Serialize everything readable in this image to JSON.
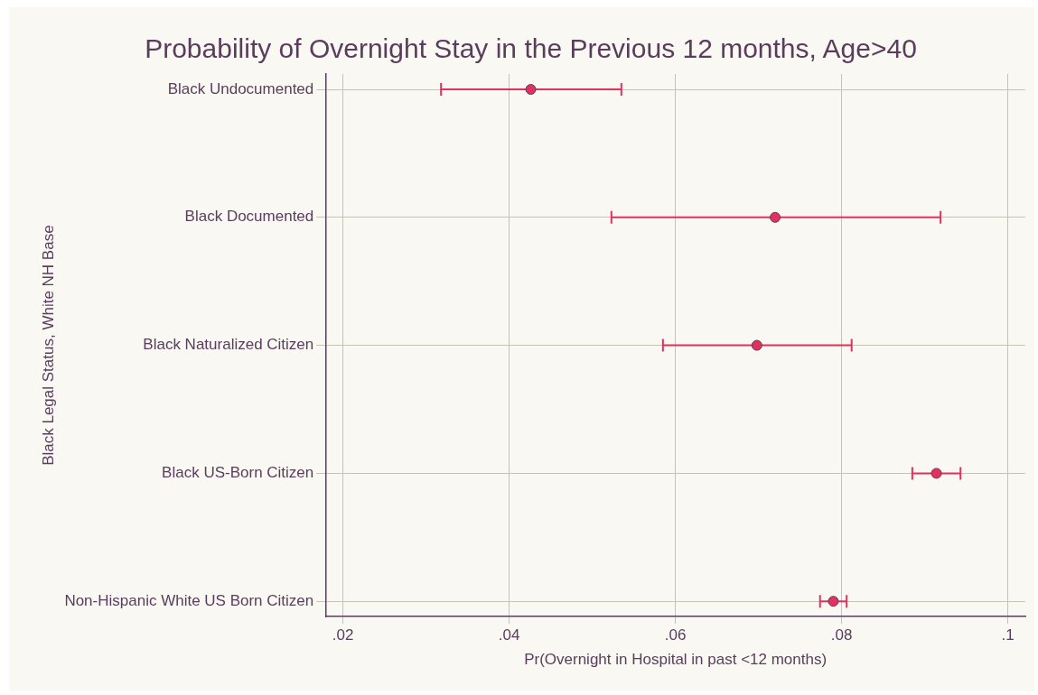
{
  "chart_data": {
    "type": "scatter",
    "orientation": "horizontal",
    "title": "Probability of Overnight Stay in the Previous 12 months, Age>40",
    "xlabel": "Pr(Overnight in Hospital in past <12 months)",
    "ylabel": "Black Legal Status, White NH Base",
    "categories": [
      "Black Undocumented",
      "Black Documented",
      "Black Naturalized Citizen",
      "Black US-Born Citizen",
      "Non-Hispanic White US Born Citizen"
    ],
    "values": [
      0.0426,
      0.072,
      0.0698,
      0.0914,
      0.079
    ],
    "errors": [
      [
        0.0318,
        0.0535
      ],
      [
        0.0523,
        0.0919
      ],
      [
        0.0585,
        0.0812
      ],
      [
        0.0885,
        0.0943
      ],
      [
        0.0774,
        0.0806
      ]
    ],
    "color": "#e0325f",
    "xlim": [
      0.0179,
      0.1021
    ],
    "xticks": [
      {
        "value": 0.02,
        "label": ".02"
      },
      {
        "value": 0.04,
        "label": ".04"
      },
      {
        "value": 0.06,
        "label": ".06"
      },
      {
        "value": 0.08,
        "label": ".08"
      },
      {
        "value": 0.1,
        "label": ".1"
      }
    ],
    "grid": true,
    "marker": "circle"
  }
}
